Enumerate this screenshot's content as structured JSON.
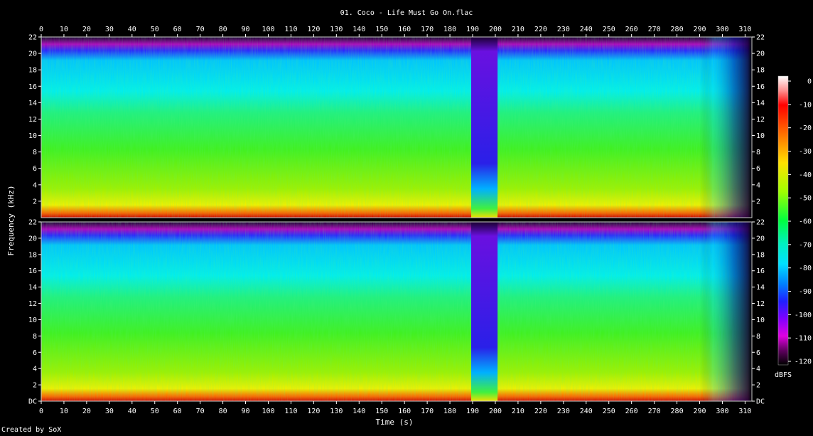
{
  "chart_data": {
    "type": "heatmap",
    "title": "01. Coco - Life Must Go On.flac",
    "xlabel": "Time (s)",
    "ylabel": "Frequency (kHz)",
    "colorbar_label": "dBFS",
    "xlim": [
      0,
      313
    ],
    "ylim": [
      0,
      22
    ],
    "x_ticks": [
      0,
      10,
      20,
      30,
      40,
      50,
      60,
      70,
      80,
      90,
      100,
      110,
      120,
      130,
      140,
      150,
      160,
      170,
      180,
      190,
      200,
      210,
      220,
      230,
      240,
      250,
      260,
      270,
      280,
      290,
      300,
      310
    ],
    "y_ticks_top_channel": [
      "22",
      "20",
      "18",
      "16",
      "14",
      "12",
      "10",
      "8",
      "6",
      "4",
      "2"
    ],
    "y_ticks_bottom_channel": [
      "22",
      "20",
      "18",
      "16",
      "14",
      "12",
      "10",
      "8",
      "6",
      "4",
      "2",
      "DC"
    ],
    "colorbar_ticks": [
      "0",
      "-10",
      "-20",
      "-30",
      "-40",
      "-50",
      "-60",
      "-70",
      "-80",
      "-90",
      "-100",
      "-110",
      "-120"
    ],
    "colorbar_range_dbfs": [
      -120,
      0
    ],
    "channels": 2,
    "features": {
      "upper_band_cutoff_khz": 20.5,
      "dip_segment_seconds": [
        190,
        201
      ],
      "fade_out_start_seconds": 290,
      "track_end_seconds": 313
    }
  },
  "footer": {
    "created_by": "Created by SoX"
  }
}
